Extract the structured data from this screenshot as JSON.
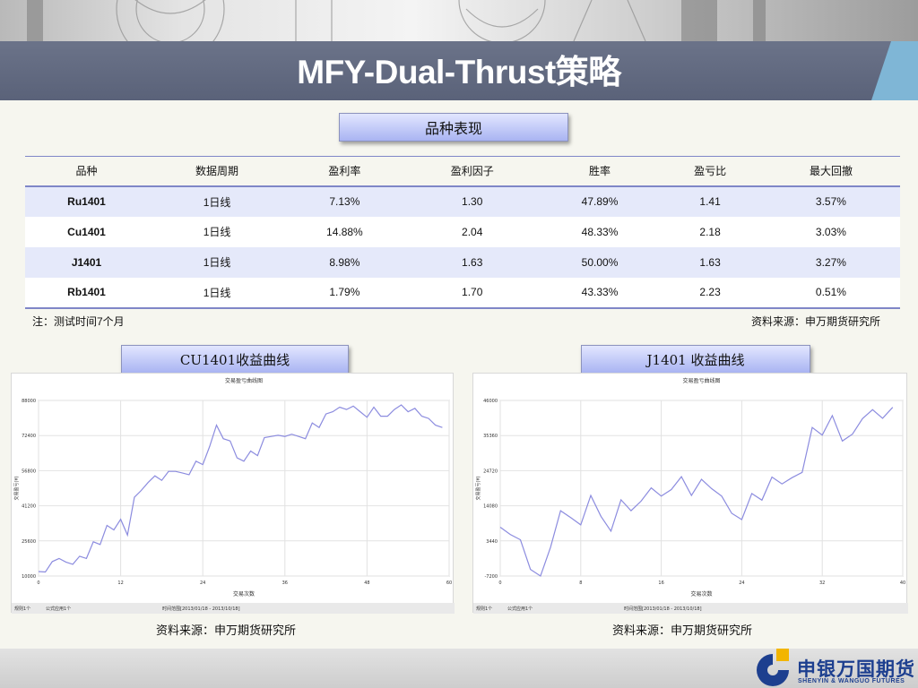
{
  "title": "MFY-Dual-Thrust策略",
  "table_section": {
    "label": "品种表现"
  },
  "table": {
    "headers": [
      "品种",
      "数据周期",
      "盈利率",
      "盈利因子",
      "胜率",
      "盈亏比",
      "最大回撤"
    ],
    "rows": [
      [
        "Ru1401",
        "1日线",
        "7.13%",
        "1.30",
        "47.89%",
        "1.41",
        "3.57%"
      ],
      [
        "Cu1401",
        "1日线",
        "14.88%",
        "2.04",
        "48.33%",
        "2.18",
        "3.03%"
      ],
      [
        "J1401",
        "1日线",
        "8.98%",
        "1.63",
        "50.00%",
        "1.63",
        "3.27%"
      ],
      [
        "Rb1401",
        "1日线",
        "1.79%",
        "1.70",
        "43.33%",
        "2.23",
        "0.51%"
      ]
    ]
  },
  "notes": {
    "left": "注：测试时间7个月",
    "right": "资料来源：申万期货研究所"
  },
  "charts": {
    "cu_label": "CU1401收益曲线",
    "j_label": "J1401 收益曲线",
    "cu_source": "资料来源：申万期货研究所",
    "j_source": "资料来源：申万期货研究所"
  },
  "logo": {
    "name": "申银万国期货",
    "subtitle": "SHENYIN & WANGUO FUTURES"
  },
  "colors": {
    "title_bar": "#5f6780",
    "label_fill": "#b9c2f5",
    "table_rule": "#7f86c7",
    "row_stripe": "#e5e9fa",
    "series": "#8c8cdf",
    "logo_blue": "#1d3f8f",
    "logo_yellow": "#f2b500"
  },
  "chart_data": [
    {
      "type": "line",
      "title": "交易盈亏曲线图",
      "xlabel": "交易次数",
      "ylabel": "交易盈亏(¥)",
      "xlim": [
        0,
        60
      ],
      "ylim": [
        10000,
        88000
      ],
      "x_ticks": [
        0,
        12,
        24,
        36,
        48,
        60
      ],
      "y_ticks": [
        10000,
        25600,
        41200,
        56800,
        72400,
        88000
      ],
      "grid": true,
      "footer": [
        "规则1个",
        "公式应用1个",
        "时间范围[2013/01/18 - 2013/10/18]"
      ],
      "x": [
        0,
        1,
        2,
        3,
        4,
        5,
        6,
        7,
        8,
        9,
        10,
        11,
        12,
        13,
        14,
        15,
        16,
        17,
        18,
        19,
        20,
        21,
        22,
        23,
        24,
        25,
        26,
        27,
        28,
        29,
        30,
        31,
        32,
        33,
        34,
        35,
        36,
        37,
        38,
        39,
        40,
        41,
        42,
        43,
        44,
        45,
        46,
        47,
        48,
        49,
        50,
        51,
        52,
        53,
        54,
        55,
        56,
        57,
        58,
        59
      ],
      "values": [
        12000,
        11800,
        16400,
        17800,
        16200,
        15200,
        18800,
        17800,
        25200,
        24000,
        32500,
        30500,
        35200,
        28200,
        45000,
        48000,
        51500,
        54500,
        52500,
        56500,
        56500,
        55800,
        55000,
        61000,
        59500,
        67500,
        77000,
        71000,
        70000,
        62500,
        61000,
        65500,
        63500,
        71500,
        72000,
        72500,
        72000,
        73000,
        72000,
        71000,
        78000,
        76000,
        82000,
        83000,
        85000,
        84000,
        85500,
        83000,
        80500,
        85000,
        81000,
        81000,
        84000,
        86000,
        83000,
        84500,
        81000,
        80000,
        77000,
        76000
      ]
    },
    {
      "type": "line",
      "title": "交易盈亏曲线图",
      "xlabel": "交易次数",
      "ylabel": "交易盈亏(¥)",
      "xlim": [
        0,
        40
      ],
      "ylim": [
        -7200,
        46000
      ],
      "x_ticks": [
        0,
        8,
        16,
        24,
        32,
        40
      ],
      "y_ticks": [
        -7200,
        3440,
        14080,
        24720,
        35360,
        46000
      ],
      "grid": true,
      "footer": [
        "规则1个",
        "公式应用1个",
        "时间范围[2013/01/18 - 2013/10/18]"
      ],
      "x": [
        0,
        1,
        2,
        3,
        4,
        5,
        6,
        7,
        8,
        9,
        10,
        11,
        12,
        13,
        14,
        15,
        16,
        17,
        18,
        19,
        20,
        21,
        22,
        23,
        24,
        25,
        26,
        27,
        28,
        29,
        30,
        31,
        32,
        33,
        34,
        35,
        36,
        37,
        38,
        39
      ],
      "values": [
        7600,
        5400,
        3800,
        -5200,
        -7200,
        1500,
        12600,
        10500,
        8300,
        17200,
        10900,
        6400,
        15900,
        12600,
        15500,
        19500,
        17000,
        19000,
        22900,
        17200,
        22100,
        19300,
        17000,
        11800,
        9900,
        17800,
        15800,
        22800,
        20700,
        22600,
        24200,
        37800,
        35500,
        41400,
        33700,
        35800,
        40500,
        43200,
        40600,
        43900
      ]
    }
  ]
}
